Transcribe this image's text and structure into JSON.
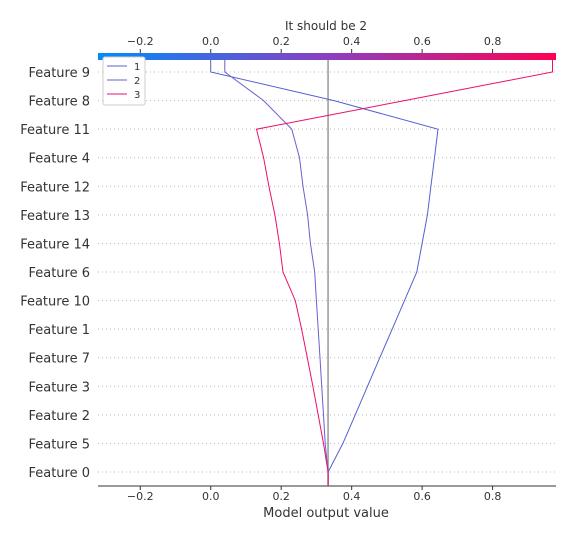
{
  "chart_data": {
    "type": "line",
    "subtype": "decision-plot",
    "title": "It should be 2",
    "xlabel": "Model output value",
    "ylabel": "",
    "xlim": [
      -0.32,
      0.98
    ],
    "x_ticks": [
      -0.2,
      0.0,
      0.2,
      0.4,
      0.6,
      0.8
    ],
    "x_tick_labels": [
      "−0.2",
      "0.0",
      "0.2",
      "0.4",
      "0.6",
      "0.8"
    ],
    "base_value": 0.333,
    "features": [
      "Feature 0",
      "Feature 5",
      "Feature 2",
      "Feature 3",
      "Feature 7",
      "Feature 1",
      "Feature 10",
      "Feature 6",
      "Feature 14",
      "Feature 13",
      "Feature 12",
      "Feature 4",
      "Feature 11",
      "Feature 8",
      "Feature 9"
    ],
    "series": [
      {
        "name": "1",
        "color": "#5561d0",
        "values": [
          0.333,
          0.375,
          0.41,
          0.445,
          0.48,
          0.515,
          0.55,
          0.585,
          0.6,
          0.615,
          0.625,
          0.635,
          0.645,
          0.35,
          0.0
        ]
      },
      {
        "name": "2",
        "color": "#6a5fcf",
        "values": [
          0.333,
          0.325,
          0.32,
          0.315,
          0.31,
          0.305,
          0.3,
          0.295,
          0.283,
          0.275,
          0.262,
          0.252,
          0.23,
          0.15,
          0.04
        ]
      },
      {
        "name": "3",
        "color": "#ea0f6b",
        "values": [
          0.333,
          0.32,
          0.305,
          0.29,
          0.274,
          0.258,
          0.24,
          0.205,
          0.195,
          0.182,
          0.165,
          0.15,
          0.13,
          0.55,
          0.97
        ]
      }
    ],
    "colorbar": {
      "low_color": "#008bfb",
      "high_color": "#ff0052"
    },
    "legend_position": "top-left",
    "grid": "horizontal-dotted"
  }
}
